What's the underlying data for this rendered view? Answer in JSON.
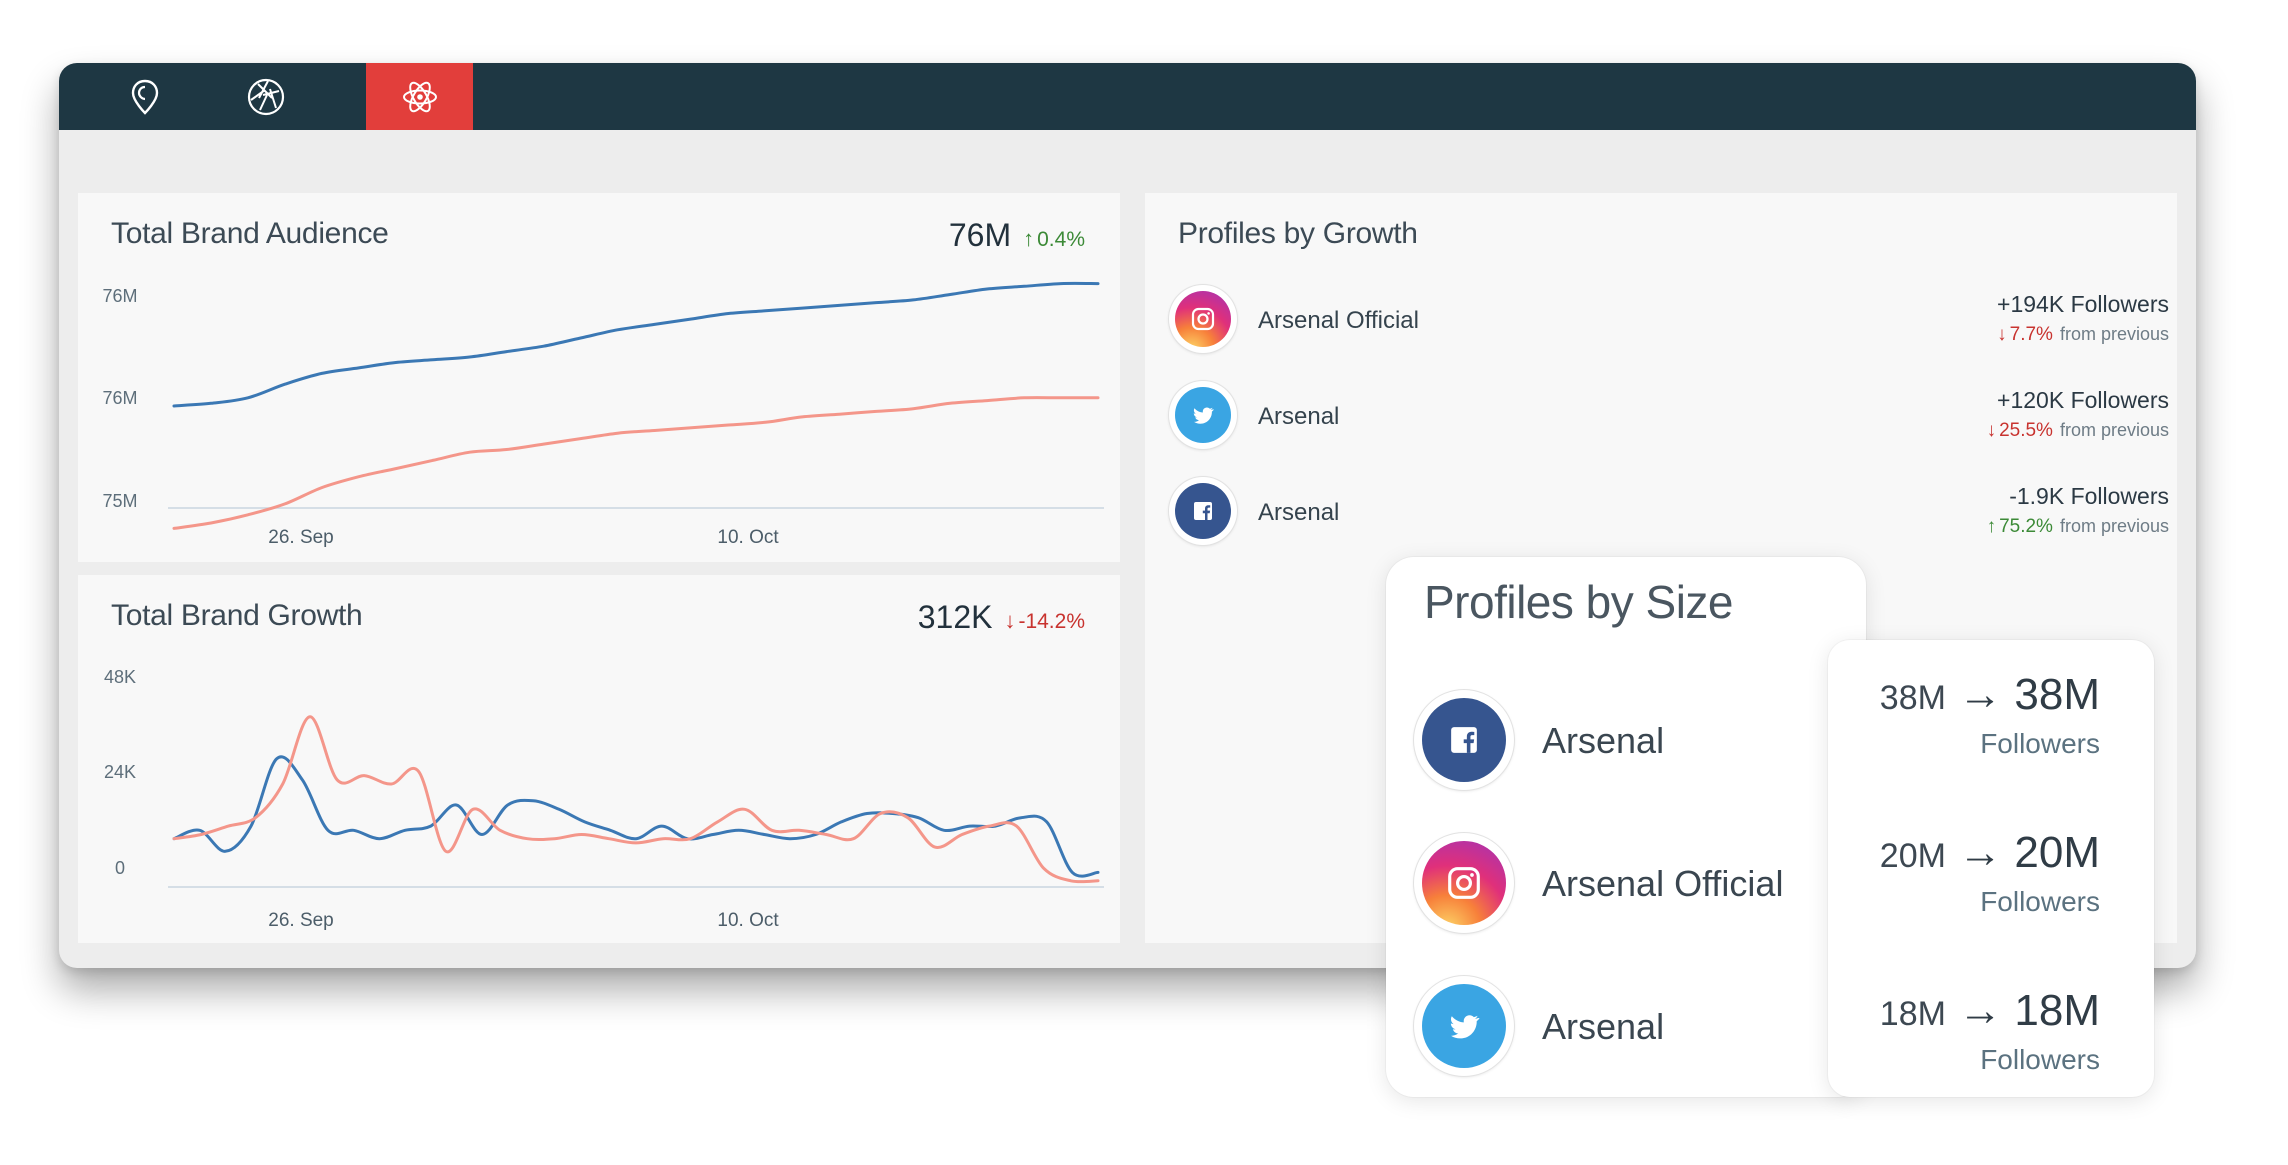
{
  "nav": {
    "items": [
      {
        "icon": "location-pin-icon",
        "active": false
      },
      {
        "icon": "aperture-icon",
        "active": false
      },
      {
        "icon": "atom-icon",
        "active": true
      }
    ],
    "active_color": "#e23e3b",
    "bar_color": "#1e3743"
  },
  "audience": {
    "title": "Total Brand Audience",
    "value": "76M",
    "change": "0.4%",
    "direction": "up"
  },
  "growth": {
    "title": "Total Brand Growth",
    "value": "312K",
    "change": "-14.2%",
    "direction": "down"
  },
  "profiles_growth": {
    "title": "Profiles by Growth",
    "rows": [
      {
        "network": "instagram",
        "name": "Arsenal Official",
        "followers": "+194K Followers",
        "change": "7.7%",
        "direction": "down",
        "suffix": "from previous"
      },
      {
        "network": "twitter",
        "name": "Arsenal",
        "followers": "+120K Followers",
        "change": "25.5%",
        "direction": "down",
        "suffix": "from previous"
      },
      {
        "network": "facebook",
        "name": "Arsenal",
        "followers": "-1.9K Followers",
        "change": "75.2%",
        "direction": "up",
        "suffix": "from previous"
      }
    ]
  },
  "profiles_size": {
    "title": "Profiles by Size",
    "rows": [
      {
        "network": "facebook",
        "name": "Arsenal",
        "from": "38M",
        "to": "38M",
        "unit": "Followers"
      },
      {
        "network": "instagram",
        "name": "Arsenal Official",
        "from": "20M",
        "to": "20M",
        "unit": "Followers"
      },
      {
        "network": "twitter",
        "name": "Arsenal",
        "from": "18M",
        "to": "18M",
        "unit": "Followers"
      }
    ]
  },
  "chart_data": [
    {
      "type": "line",
      "title": "Total Brand Audience",
      "x_ticks": [
        "26. Sep",
        "10. Oct"
      ],
      "y_ticks": [
        "76M",
        "76M",
        "75M"
      ],
      "grid": false,
      "series": [
        {
          "color": "#3b78b4",
          "values": [
            0.5,
            0.51,
            0.53,
            0.58,
            0.62,
            0.64,
            0.66,
            0.67,
            0.68,
            0.7,
            0.72,
            0.75,
            0.78,
            0.8,
            0.82,
            0.84,
            0.85,
            0.86,
            0.87,
            0.88,
            0.89,
            0.91,
            0.93,
            0.94,
            0.95,
            0.95
          ]
        },
        {
          "color": "#f4968a",
          "values": [
            0.05,
            0.07,
            0.1,
            0.14,
            0.2,
            0.24,
            0.27,
            0.3,
            0.33,
            0.34,
            0.36,
            0.38,
            0.4,
            0.41,
            0.42,
            0.43,
            0.44,
            0.46,
            0.47,
            0.48,
            0.49,
            0.51,
            0.52,
            0.53,
            0.53,
            0.53
          ]
        }
      ]
    },
    {
      "type": "line",
      "title": "Total Brand Growth",
      "x_ticks": [
        "26. Sep",
        "10. Oct"
      ],
      "y_ticks": [
        "48K",
        "24K",
        "0"
      ],
      "ylim": [
        0,
        48
      ],
      "grid": false,
      "series": [
        {
          "color": "#3b78b4",
          "values": [
            11,
            13,
            8,
            14,
            30,
            25,
            13,
            13,
            11,
            13,
            14,
            19,
            12,
            19,
            20,
            18,
            15,
            13,
            11,
            14,
            11,
            12,
            13,
            12,
            11,
            12,
            15,
            17,
            17,
            16,
            13,
            14,
            14,
            16,
            15,
            3,
            3
          ]
        },
        {
          "color": "#f4968a",
          "values": [
            11,
            12,
            14,
            16,
            24,
            40,
            25,
            26,
            24,
            27,
            8,
            18,
            13,
            11,
            11,
            12,
            11,
            10,
            11,
            11,
            15,
            18,
            13,
            13,
            12,
            11,
            17,
            16,
            9,
            12,
            14,
            14,
            4,
            1,
            1
          ]
        }
      ]
    }
  ]
}
